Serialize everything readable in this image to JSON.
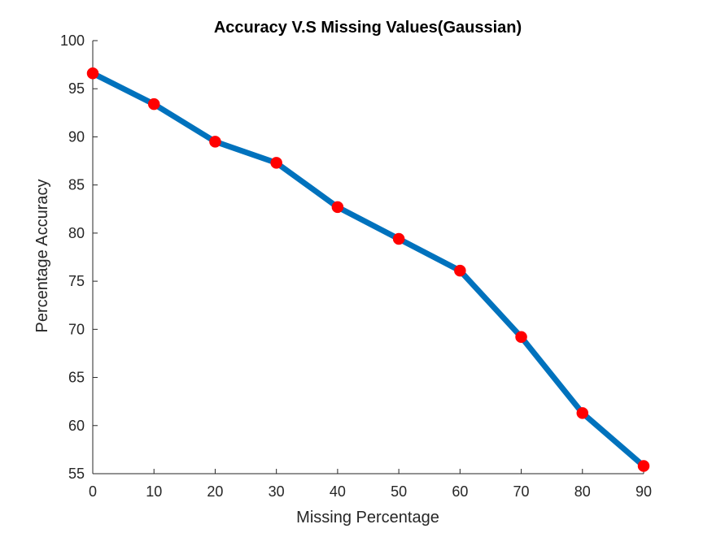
{
  "chart_data": {
    "type": "line",
    "title": "Accuracy V.S Missing Values(Gaussian)",
    "xlabel": "Missing Percentage",
    "ylabel": "Percentage Accuracy",
    "xlim": [
      0,
      90
    ],
    "ylim": [
      55,
      100
    ],
    "xticks": [
      0,
      10,
      20,
      30,
      40,
      50,
      60,
      70,
      80,
      90
    ],
    "yticks": [
      55,
      60,
      65,
      70,
      75,
      80,
      85,
      90,
      95,
      100
    ],
    "grid": false,
    "x": [
      0,
      10,
      20,
      30,
      40,
      50,
      60,
      70,
      80,
      90
    ],
    "series": [
      {
        "values": [
          96.6,
          93.4,
          89.5,
          87.3,
          82.7,
          79.4,
          76.1,
          69.2,
          61.3,
          55.8
        ],
        "line_color": "#0072BD",
        "marker_color": "#FF0000"
      }
    ]
  }
}
